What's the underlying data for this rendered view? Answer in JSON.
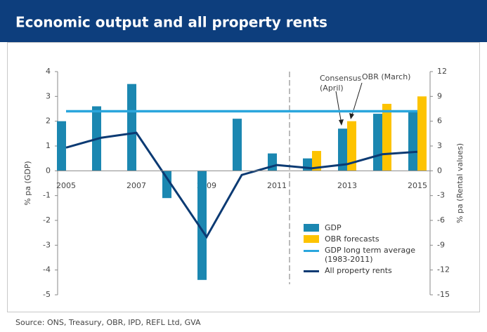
{
  "chart_data": {
    "type": "bar",
    "title": "Economic output and all property rents",
    "y_label": "% pa (GDP)",
    "y2_label": "% pa (Rental values)",
    "source": "Source: ONS, Treasury, OBR, IPD, REFL Ltd, GVA",
    "categories": [
      "2005",
      null,
      "2007",
      null,
      "2009",
      null,
      "2011",
      null,
      "2013",
      null,
      "2015"
    ],
    "series": [
      {
        "name": "GDP",
        "type": "bar",
        "color": "#1b87b1",
        "values": [
          2.0,
          2.6,
          3.5,
          -1.1,
          -4.4,
          2.1,
          0.7,
          0.5,
          1.7,
          2.3,
          2.4
        ]
      },
      {
        "name": "OBR forecasts",
        "type": "bar",
        "color": "#fdc300",
        "values": [
          null,
          null,
          null,
          null,
          null,
          null,
          null,
          0.8,
          2.0,
          2.7,
          3.0
        ]
      },
      {
        "name": "GDP long term average (1983-2011)",
        "type": "line",
        "color": "#2aa6dd",
        "values": [
          2.4,
          2.4,
          2.4,
          2.4,
          2.4,
          2.4,
          2.4,
          2.4,
          2.4,
          2.4,
          2.4
        ]
      },
      {
        "name": "All property rents",
        "type": "line",
        "axis": "y2",
        "color": "#0b3a73",
        "values": [
          2.8,
          4.0,
          4.6,
          -1.7,
          -8.0,
          -0.5,
          0.7,
          0.3,
          0.8,
          2.0,
          2.3
        ]
      }
    ],
    "annotations": [
      {
        "lines": [
          "Consensus",
          "(April)"
        ]
      },
      {
        "lines": [
          "OBR (March)"
        ]
      }
    ],
    "ylim": [
      -5,
      4
    ],
    "yticks": [
      4,
      3,
      2,
      1,
      0,
      -1,
      -2,
      -3,
      -4,
      -5
    ],
    "y2lim": [
      -15,
      12
    ],
    "y2ticks": [
      12,
      9,
      6,
      3,
      0,
      -3,
      -6,
      -9,
      -12,
      -15
    ],
    "grid": false
  }
}
